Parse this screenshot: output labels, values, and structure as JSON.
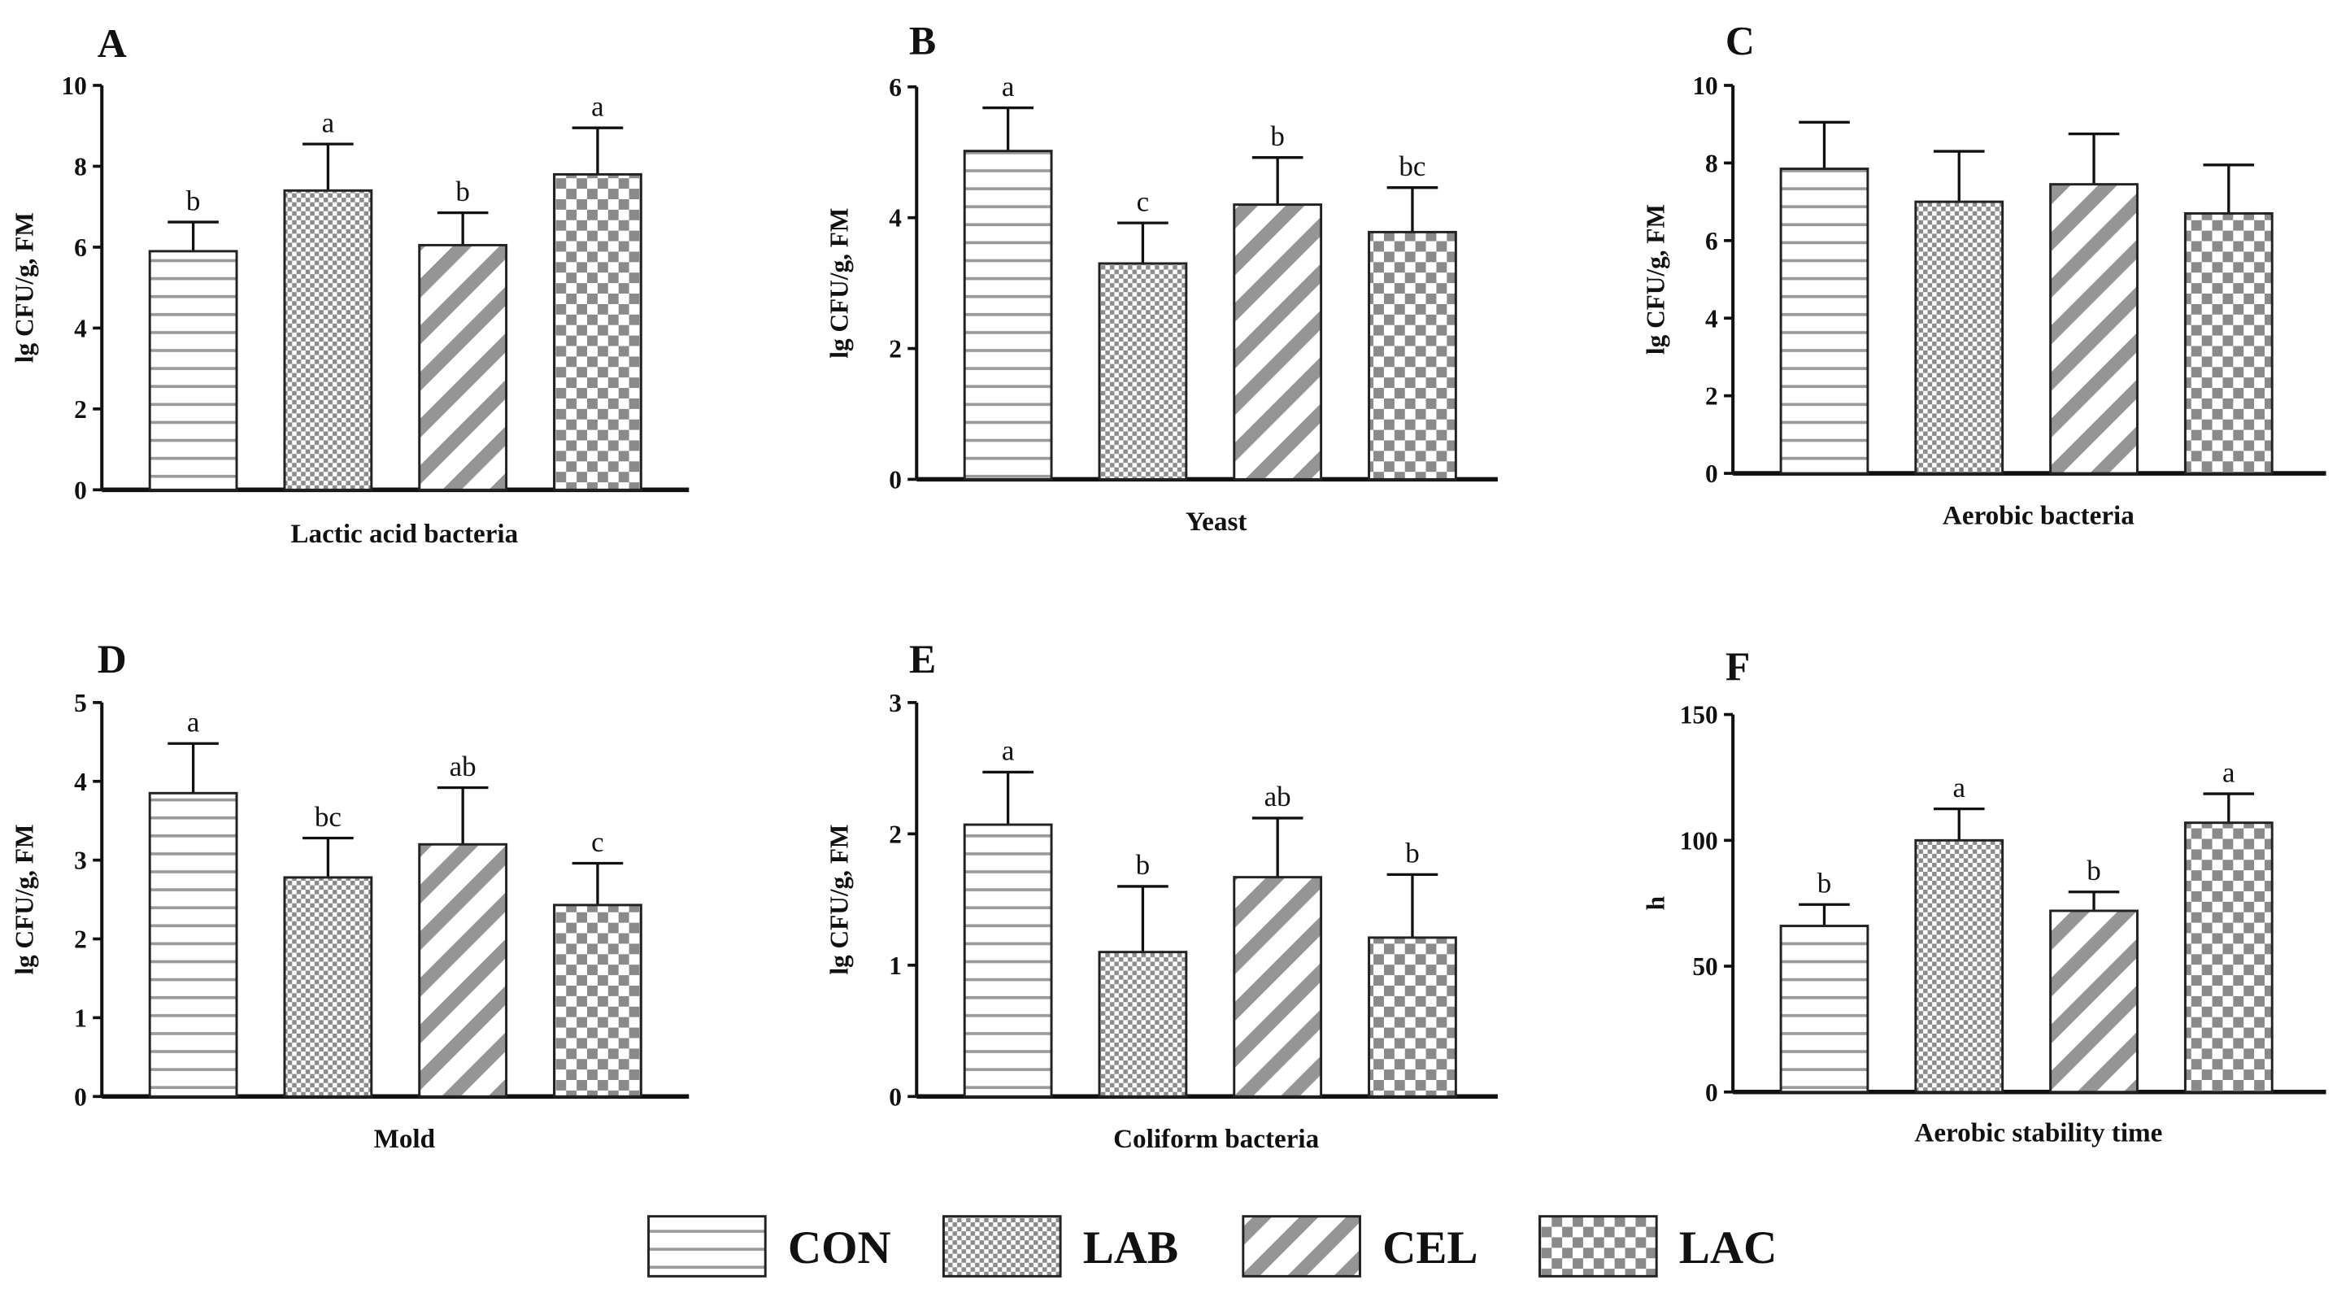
{
  "groups": [
    {
      "key": "CON",
      "label": "CON",
      "pattern": "horizontal"
    },
    {
      "key": "LAB",
      "label": "LAB",
      "pattern": "fine-check"
    },
    {
      "key": "CEL",
      "label": "CEL",
      "pattern": "diagonal"
    },
    {
      "key": "LAC",
      "label": "LAC",
      "pattern": "coarse-check"
    }
  ],
  "chart_data": [
    {
      "panel": "A",
      "type": "bar",
      "title": "A",
      "xlabel": "Lactic acid bacteria",
      "ylabel": "lg CFU/g, FM",
      "categories": [
        "CON",
        "LAB",
        "CEL",
        "LAC"
      ],
      "values": [
        5.9,
        7.4,
        6.05,
        7.8
      ],
      "errors": [
        0.72,
        1.15,
        0.8,
        1.15
      ],
      "letters": [
        "b",
        "a",
        "b",
        "a"
      ],
      "ylim": [
        0,
        10
      ],
      "yticks": [
        0,
        2,
        4,
        6,
        8,
        10
      ],
      "ytick_labels": [
        "0",
        "2",
        "4",
        "6",
        "8",
        "10"
      ]
    },
    {
      "panel": "B",
      "type": "bar",
      "title": "B",
      "xlabel": "Yeast",
      "ylabel": "lg CFU/g, FM",
      "categories": [
        "CON",
        "LAB",
        "CEL",
        "LAC"
      ],
      "values": [
        5.02,
        3.3,
        4.2,
        3.78
      ],
      "errors": [
        0.66,
        0.62,
        0.72,
        0.68
      ],
      "letters": [
        "a",
        "c",
        "b",
        "bc"
      ],
      "ylim": [
        0,
        6
      ],
      "yticks": [
        0,
        2,
        4,
        6
      ],
      "ytick_labels": [
        "0",
        "2",
        "4",
        "6"
      ]
    },
    {
      "panel": "C",
      "type": "bar",
      "title": "C",
      "xlabel": "Aerobic bacteria",
      "ylabel": "lg CFU/g, FM",
      "categories": [
        "CON",
        "LAB",
        "CEL",
        "LAC"
      ],
      "values": [
        7.85,
        7.0,
        7.45,
        6.7
      ],
      "errors": [
        1.2,
        1.3,
        1.3,
        1.25
      ],
      "letters": [
        "",
        "",
        "",
        ""
      ],
      "ylim": [
        0,
        10
      ],
      "yticks": [
        0,
        2,
        4,
        6,
        8,
        10
      ],
      "ytick_labels": [
        "0",
        "2",
        "4",
        "6",
        "8",
        "10"
      ]
    },
    {
      "panel": "D",
      "type": "bar",
      "title": "D",
      "xlabel": "Mold",
      "ylabel": "lg CFU/g, FM",
      "categories": [
        "CON",
        "LAB",
        "CEL",
        "LAC"
      ],
      "values": [
        3.85,
        2.78,
        3.2,
        2.43
      ],
      "errors": [
        0.63,
        0.5,
        0.72,
        0.53
      ],
      "letters": [
        "a",
        "bc",
        "ab",
        "c"
      ],
      "ylim": [
        0,
        5
      ],
      "yticks": [
        0,
        1,
        2,
        3,
        4,
        5
      ],
      "ytick_labels": [
        "0",
        "1",
        "2",
        "3",
        "4",
        "5"
      ]
    },
    {
      "panel": "E",
      "type": "bar",
      "title": "E",
      "xlabel": "Coliform bacteria",
      "ylabel": "lg CFU/g, FM",
      "categories": [
        "CON",
        "LAB",
        "CEL",
        "LAC"
      ],
      "values": [
        2.07,
        1.1,
        1.67,
        1.21
      ],
      "errors": [
        0.4,
        0.5,
        0.45,
        0.48
      ],
      "letters": [
        "a",
        "b",
        "ab",
        "b"
      ],
      "ylim": [
        0,
        3
      ],
      "yticks": [
        0,
        1,
        2,
        3
      ],
      "ytick_labels": [
        "0",
        "1",
        "2",
        "3"
      ]
    },
    {
      "panel": "F",
      "type": "bar",
      "title": "F",
      "xlabel": "Aerobic stability time",
      "ylabel": "h",
      "categories": [
        "CON",
        "LAB",
        "CEL",
        "LAC"
      ],
      "values": [
        66,
        100,
        72,
        107
      ],
      "errors": [
        8.5,
        12.5,
        7.5,
        11.5
      ],
      "letters": [
        "b",
        "a",
        "b",
        "a"
      ],
      "ylim": [
        0,
        150
      ],
      "yticks": [
        0,
        50,
        100,
        150
      ],
      "ytick_labels": [
        "0",
        "50",
        "100",
        "150"
      ]
    }
  ]
}
